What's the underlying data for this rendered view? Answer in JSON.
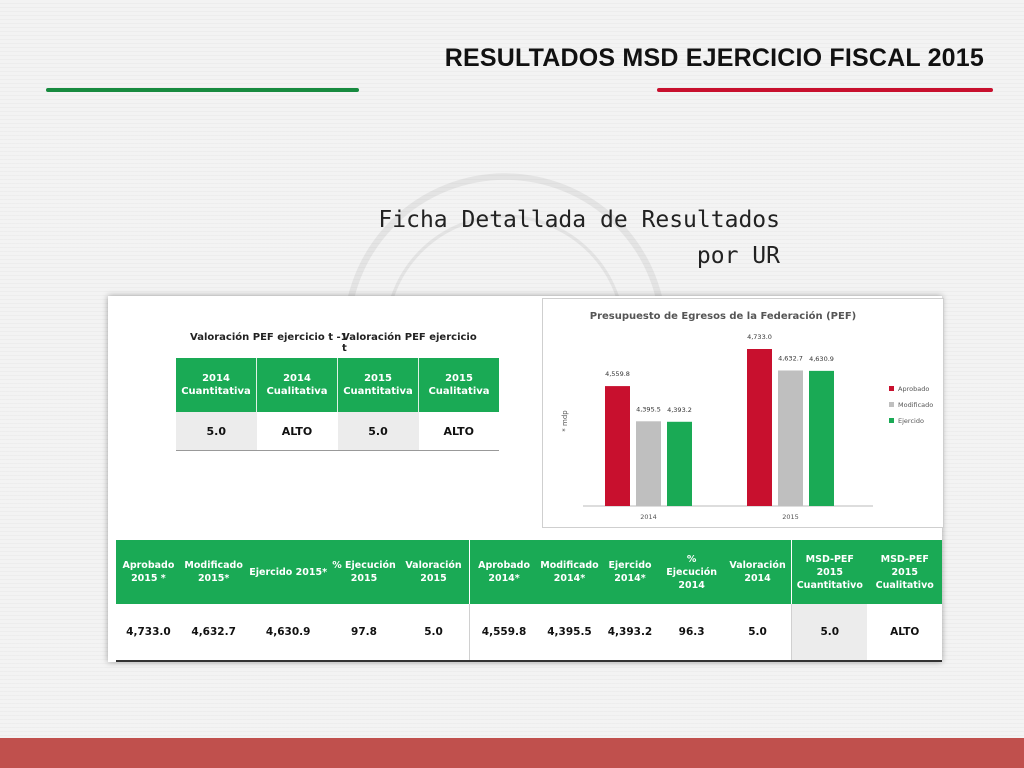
{
  "header": {
    "title": "RESULTADOS MSD EJERCICIO FISCAL 2015",
    "subtitle_line1": "Ficha Detallada de Resultados",
    "subtitle_line2": "por UR",
    "accent_green": "#178a3f",
    "accent_red": "#c8102e",
    "footer_color": "#c0504d"
  },
  "valuation": {
    "group_prev": "Valoración PEF ejercicio t -1",
    "group_curr": "Valoración PEF ejercicio t",
    "columns": [
      [
        "2014",
        "Cuantitativa"
      ],
      [
        "2014",
        "Cualitativa"
      ],
      [
        "2015",
        "Cuantitativa"
      ],
      [
        "2015",
        "Cualitativa"
      ]
    ],
    "values": [
      "5.0",
      "ALTO",
      "5.0",
      "ALTO"
    ]
  },
  "chart_data": {
    "type": "bar",
    "title": "Presupuesto de Egresos de la Federación (PEF)",
    "ylabel": "* mdp",
    "categories": [
      "2014",
      "2015"
    ],
    "series": [
      {
        "name": "Aprobado",
        "color": "#c8102e",
        "values": [
          4559.8,
          4733.0
        ],
        "labels": [
          "4,559.8",
          "4,733.0"
        ]
      },
      {
        "name": "Modificado",
        "color": "#bfbfbf",
        "values": [
          4395.5,
          4632.7
        ],
        "labels": [
          "4,395.5",
          "4,632.7"
        ]
      },
      {
        "name": "Ejercido",
        "color": "#1aaa55",
        "values": [
          4393.2,
          4630.9
        ],
        "labels": [
          "4,393.2",
          "4,630.9"
        ]
      }
    ],
    "legend": "right"
  },
  "summary": {
    "headers": [
      [
        "Aprobado",
        "2015 *"
      ],
      [
        "Modificado",
        "2015*"
      ],
      [
        "Ejercido 2015*"
      ],
      [
        "% Ejecución",
        "2015"
      ],
      [
        "Valoración",
        "2015"
      ],
      [
        "Aprobado",
        "2014*"
      ],
      [
        "Modificado",
        "2014*"
      ],
      [
        "Ejercido",
        "2014*"
      ],
      [
        "% Ejecución",
        "2014"
      ],
      [
        "Valoración",
        "2014"
      ],
      [
        "MSD-PEF",
        "2015",
        "Cuantitativo"
      ],
      [
        "MSD-PEF",
        "2015",
        "Cualitativo"
      ]
    ],
    "values": [
      "4,733.0",
      "4,632.7",
      "4,630.9",
      "97.8",
      "5.0",
      "4,559.8",
      "4,395.5",
      "4,393.2",
      "96.3",
      "5.0",
      "5.0",
      "ALTO"
    ]
  }
}
